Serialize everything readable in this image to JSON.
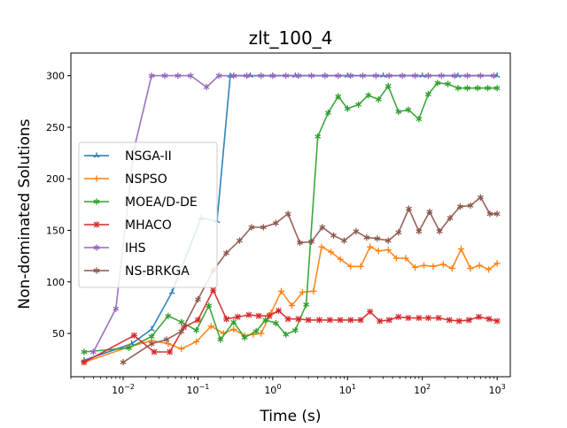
{
  "chart_data": {
    "type": "line",
    "title": "zlt_100_4",
    "xlabel": "Time (s)",
    "ylabel": "Non-dominated Solutions",
    "xscale": "log",
    "xlim": [
      0.002,
      1500
    ],
    "ylim": [
      8,
      322
    ],
    "x_ticks": [
      {
        "value": 0.01,
        "base": "10",
        "exp": "−2"
      },
      {
        "value": 0.1,
        "base": "10",
        "exp": "−1"
      },
      {
        "value": 1,
        "base": "10",
        "exp": "0"
      },
      {
        "value": 10,
        "base": "10",
        "exp": "1"
      },
      {
        "value": 100,
        "base": "10",
        "exp": "2"
      },
      {
        "value": 1000,
        "base": "10",
        "exp": "3"
      }
    ],
    "y_ticks": [
      50,
      100,
      150,
      200,
      250,
      300
    ],
    "grid": false,
    "legend_position": "center-left",
    "series": [
      {
        "name": "NSGA-II",
        "color": "#1f77b4",
        "marker": "tri",
        "x": [
          0.003,
          0.013,
          0.024,
          0.045,
          0.11,
          0.18,
          0.27,
          0.3,
          0.5,
          1,
          2,
          5,
          10,
          30,
          100,
          300,
          1000
        ],
        "y": [
          24,
          40,
          54,
          90,
          162,
          159,
          300,
          300,
          300,
          300,
          300,
          300,
          300,
          300,
          300,
          300,
          300
        ]
      },
      {
        "name": "NSPSO",
        "color": "#ff7f0e",
        "marker": "plus",
        "x": [
          0.003,
          0.012,
          0.024,
          0.04,
          0.06,
          0.095,
          0.15,
          0.22,
          0.3,
          0.42,
          0.55,
          0.7,
          0.95,
          1.3,
          1.8,
          2.5,
          3.5,
          4.5,
          6,
          8,
          11,
          15,
          20,
          26,
          35,
          45,
          60,
          80,
          105,
          140,
          190,
          250,
          330,
          440,
          580,
          770,
          1000
        ],
        "y": [
          22,
          37,
          43,
          40,
          35,
          42,
          57,
          50,
          54,
          48,
          49,
          50,
          70,
          91,
          77,
          90,
          91,
          134,
          129,
          122,
          115,
          115,
          134,
          130,
          131,
          123,
          123,
          114,
          116,
          115,
          117,
          113,
          132,
          113,
          116,
          112,
          118
        ]
      },
      {
        "name": "MOEA/D-DE",
        "color": "#2ca02c",
        "marker": "star",
        "x": [
          0.003,
          0.012,
          0.024,
          0.04,
          0.06,
          0.095,
          0.14,
          0.2,
          0.3,
          0.42,
          0.6,
          0.8,
          1.1,
          1.5,
          2,
          2.8,
          4,
          5.5,
          7.5,
          10,
          14,
          19,
          26,
          35,
          48,
          65,
          90,
          120,
          160,
          220,
          300,
          400,
          550,
          750,
          1000
        ],
        "y": [
          32,
          36,
          47,
          67,
          61,
          53,
          77,
          44,
          61,
          46,
          52,
          63,
          60,
          49,
          53,
          78,
          241,
          264,
          280,
          268,
          272,
          281,
          277,
          290,
          265,
          267,
          258,
          282,
          293,
          292,
          288,
          288,
          288,
          288,
          288
        ]
      },
      {
        "name": "MHACO",
        "color": "#d62728",
        "marker": "x",
        "x": [
          0.003,
          0.014,
          0.026,
          0.042,
          0.065,
          0.1,
          0.16,
          0.24,
          0.34,
          0.48,
          0.65,
          0.9,
          1.2,
          1.6,
          2.2,
          3,
          4.2,
          5.8,
          8,
          11,
          15,
          20,
          27,
          36,
          48,
          65,
          90,
          120,
          165,
          230,
          310,
          420,
          570,
          780,
          1000
        ],
        "y": [
          22,
          48,
          32,
          32,
          56,
          63,
          92,
          64,
          66,
          68,
          67,
          67,
          72,
          64,
          64,
          63,
          63,
          63,
          63,
          63,
          63,
          71,
          62,
          63,
          66,
          65,
          65,
          65,
          65,
          63,
          62,
          63,
          66,
          64,
          62
        ]
      },
      {
        "name": "IHS",
        "color": "#9467bd",
        "marker": "star",
        "x": [
          0.004,
          0.008,
          0.014,
          0.024,
          0.036,
          0.054,
          0.08,
          0.13,
          0.19,
          0.3,
          0.45,
          0.7,
          1,
          1.5,
          2.2,
          3.3,
          5,
          7.5,
          11,
          16,
          24,
          36,
          54,
          80,
          120,
          180,
          270,
          400,
          600,
          900
        ],
        "y": [
          32,
          74,
          229,
          300,
          300,
          300,
          300,
          289,
          300,
          300,
          300,
          300,
          300,
          300,
          300,
          300,
          300,
          300,
          300,
          300,
          300,
          300,
          300,
          300,
          300,
          300,
          300,
          300,
          300,
          300
        ]
      },
      {
        "name": "NS-BRKGA",
        "color": "#8c564b",
        "marker": "star",
        "x": [
          0.01,
          0.024,
          0.038,
          0.06,
          0.1,
          0.16,
          0.24,
          0.36,
          0.52,
          0.75,
          1.1,
          1.6,
          2.3,
          3.3,
          4.6,
          6.5,
          9,
          13,
          18,
          25,
          35,
          48,
          66,
          90,
          125,
          170,
          235,
          320,
          440,
          600,
          800,
          1000
        ],
        "y": [
          22,
          40,
          44,
          52,
          83,
          111,
          128,
          140,
          153,
          153,
          157,
          166,
          138,
          139,
          153,
          145,
          140,
          149,
          143,
          142,
          140,
          148,
          171,
          149,
          168,
          149,
          162,
          173,
          174,
          182,
          166,
          166
        ]
      }
    ]
  }
}
